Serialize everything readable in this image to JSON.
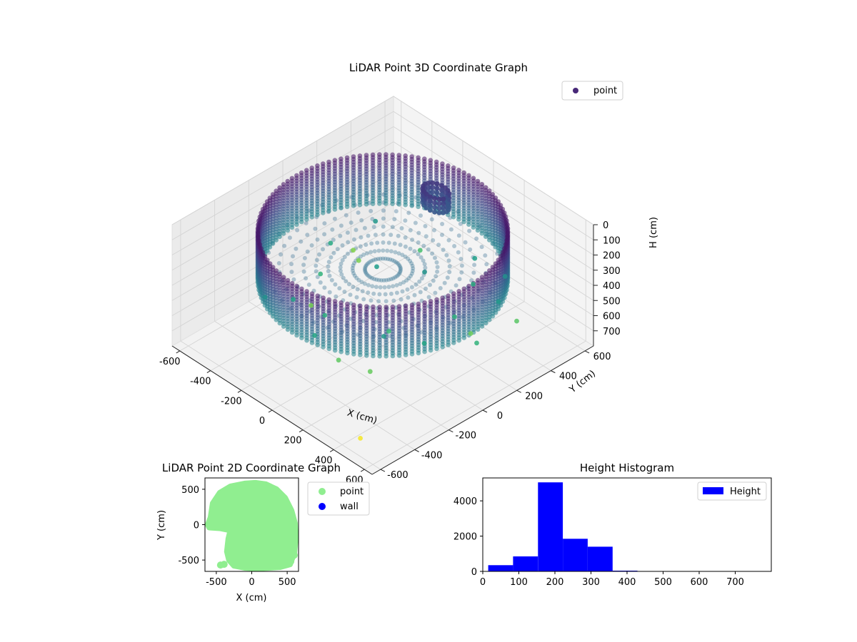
{
  "chart_data": [
    {
      "type": "scatter3d",
      "title": "LiDAR Point 3D Coordinate Graph",
      "xlabel": "X (cm)",
      "ylabel": "Y (cm)",
      "zlabel": "H (cm)",
      "xlim": [
        -650,
        650
      ],
      "ylim": [
        -650,
        650
      ],
      "zlim": [
        0,
        800
      ],
      "z_inverted": true,
      "x_ticks": [
        -600,
        -400,
        -200,
        0,
        200,
        400,
        600
      ],
      "y_ticks": [
        -600,
        -400,
        -200,
        0,
        200,
        400,
        600
      ],
      "z_ticks": [
        0,
        100,
        200,
        300,
        400,
        500,
        600,
        700
      ],
      "legend": {
        "position": "top-right",
        "entries": [
          {
            "label": "point",
            "color": "#482878"
          }
        ]
      },
      "colormap": "viridis",
      "outliers": [
        {
          "x": 430,
          "y": -520,
          "h": 790
        },
        {
          "x": -480,
          "y": 260,
          "h": 650
        },
        {
          "x": -400,
          "y": 220,
          "h": 640
        },
        {
          "x": -300,
          "y": -150,
          "h": 630
        },
        {
          "x": 350,
          "y": 200,
          "h": 620
        },
        {
          "x": 250,
          "y": -300,
          "h": 610
        },
        {
          "x": 100,
          "y": -350,
          "h": 600
        },
        {
          "x": 450,
          "y": 380,
          "h": 590
        },
        {
          "x": -200,
          "y": 400,
          "h": 560
        },
        {
          "x": 150,
          "y": -100,
          "h": 540
        },
        {
          "x": -350,
          "y": -50,
          "h": 520
        },
        {
          "x": 500,
          "y": 100,
          "h": 520
        },
        {
          "x": 300,
          "y": 150,
          "h": 510
        },
        {
          "x": -100,
          "y": -250,
          "h": 500
        },
        {
          "x": 200,
          "y": 350,
          "h": 490
        },
        {
          "x": -450,
          "y": 100,
          "h": 480
        },
        {
          "x": 0,
          "y": -400,
          "h": 470
        },
        {
          "x": 380,
          "y": -100,
          "h": 470
        },
        {
          "x": -250,
          "y": -300,
          "h": 460
        },
        {
          "x": 100,
          "y": 450,
          "h": 450
        },
        {
          "x": -150,
          "y": 100,
          "h": 440
        },
        {
          "x": 420,
          "y": 300,
          "h": 430
        },
        {
          "x": 250,
          "y": -220,
          "h": 430
        },
        {
          "x": -380,
          "y": 300,
          "h": 420
        },
        {
          "x": 50,
          "y": 200,
          "h": 410
        },
        {
          "x": -300,
          "y": -420,
          "h": 400
        },
        {
          "x": 330,
          "y": 420,
          "h": 400
        }
      ],
      "ring": {
        "radius": 560,
        "h_top": 40,
        "h_bottom": 380,
        "inner_floor_h": 300
      },
      "object": {
        "x": -120,
        "y": 420,
        "h_top": 130
      }
    },
    {
      "type": "scatter",
      "title": "LiDAR Point 2D Coordinate Graph",
      "xlabel": "X (cm)",
      "ylabel": "Y (cm)",
      "xlim": [
        -660,
        660
      ],
      "ylim": [
        -660,
        660
      ],
      "x_ticks": [
        -500,
        0,
        500
      ],
      "y_ticks": [
        -500,
        0,
        500
      ],
      "legend": {
        "position": "right",
        "entries": [
          {
            "label": "point",
            "color": "#90ee90"
          },
          {
            "label": "wall",
            "color": "#0000ff"
          }
        ]
      },
      "shape_outline": [
        [
          -580,
          100
        ],
        [
          -550,
          300
        ],
        [
          -450,
          450
        ],
        [
          -300,
          540
        ],
        [
          -100,
          580
        ],
        [
          50,
          590
        ],
        [
          200,
          570
        ],
        [
          350,
          500
        ],
        [
          470,
          380
        ],
        [
          560,
          200
        ],
        [
          610,
          20
        ],
        [
          620,
          -200
        ],
        [
          600,
          -400
        ],
        [
          540,
          -560
        ],
        [
          400,
          -600
        ],
        [
          250,
          -610
        ],
        [
          80,
          -620
        ],
        [
          -100,
          -610
        ],
        [
          -250,
          -580
        ],
        [
          -320,
          -500
        ],
        [
          -350,
          -380
        ],
        [
          -330,
          -200
        ],
        [
          -300,
          -80
        ],
        [
          -450,
          -50
        ],
        [
          -600,
          -40
        ],
        [
          -620,
          0
        ]
      ],
      "stray_points": [
        {
          "x": -440,
          "y": -570
        },
        {
          "x": 460,
          "y": -560
        },
        {
          "x": 550,
          "y": -520
        },
        {
          "x": 600,
          "y": -430
        },
        {
          "x": 600,
          "y": -280
        },
        {
          "x": 440,
          "y": -440
        },
        {
          "x": -390,
          "y": -560
        }
      ]
    },
    {
      "type": "bar",
      "title": "Height Histogram",
      "xlim": [
        0,
        800
      ],
      "ylim": [
        0,
        5300
      ],
      "x_ticks": [
        0,
        100,
        200,
        300,
        400,
        500,
        600,
        700
      ],
      "y_ticks": [
        0,
        2000,
        4000
      ],
      "legend": {
        "position": "top-right",
        "entries": [
          {
            "label": "Height",
            "color": "#0000ff"
          }
        ]
      },
      "bins": [
        {
          "start": 15,
          "end": 84,
          "count": 350
        },
        {
          "start": 84,
          "end": 153,
          "count": 850
        },
        {
          "start": 153,
          "end": 222,
          "count": 5050
        },
        {
          "start": 222,
          "end": 291,
          "count": 1850
        },
        {
          "start": 291,
          "end": 360,
          "count": 1400
        },
        {
          "start": 360,
          "end": 429,
          "count": 40
        },
        {
          "start": 429,
          "end": 498,
          "count": 5
        },
        {
          "start": 498,
          "end": 567,
          "count": 3
        },
        {
          "start": 567,
          "end": 636,
          "count": 2
        },
        {
          "start": 636,
          "end": 705,
          "count": 2
        },
        {
          "start": 705,
          "end": 774,
          "count": 1
        }
      ]
    }
  ]
}
